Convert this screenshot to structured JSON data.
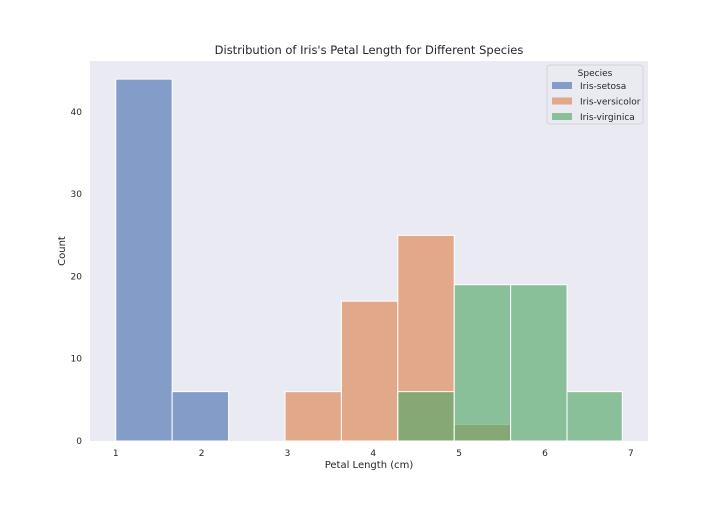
{
  "chart_data": {
    "type": "histogram",
    "title": "Distribution of Iris's Petal Length for Different Species",
    "xlabel": "Petal Length (cm)",
    "ylabel": "Count",
    "xlim": [
      0.7,
      7.2
    ],
    "ylim": [
      0,
      46.2
    ],
    "xticks": [
      1,
      2,
      3,
      4,
      5,
      6,
      7
    ],
    "yticks": [
      0,
      10,
      20,
      30,
      40
    ],
    "grid": false,
    "bin_edges": [
      1.0,
      1.6571,
      2.3143,
      2.9714,
      3.6286,
      4.2857,
      4.9429,
      5.6,
      6.2571,
      6.9
    ],
    "legend": {
      "title": "Species",
      "placement": "upper right"
    },
    "series": [
      {
        "name": "Iris-setosa",
        "color": "#4c72b0",
        "values": [
          44,
          6,
          0,
          0,
          0,
          0,
          0,
          0,
          0
        ]
      },
      {
        "name": "Iris-versicolor",
        "color": "#dd8452",
        "values": [
          0,
          0,
          0,
          6,
          17,
          25,
          2,
          0,
          0
        ]
      },
      {
        "name": "Iris-virginica",
        "color": "#55a868",
        "values": [
          0,
          0,
          0,
          0,
          0,
          6,
          19,
          19,
          6
        ]
      }
    ]
  }
}
